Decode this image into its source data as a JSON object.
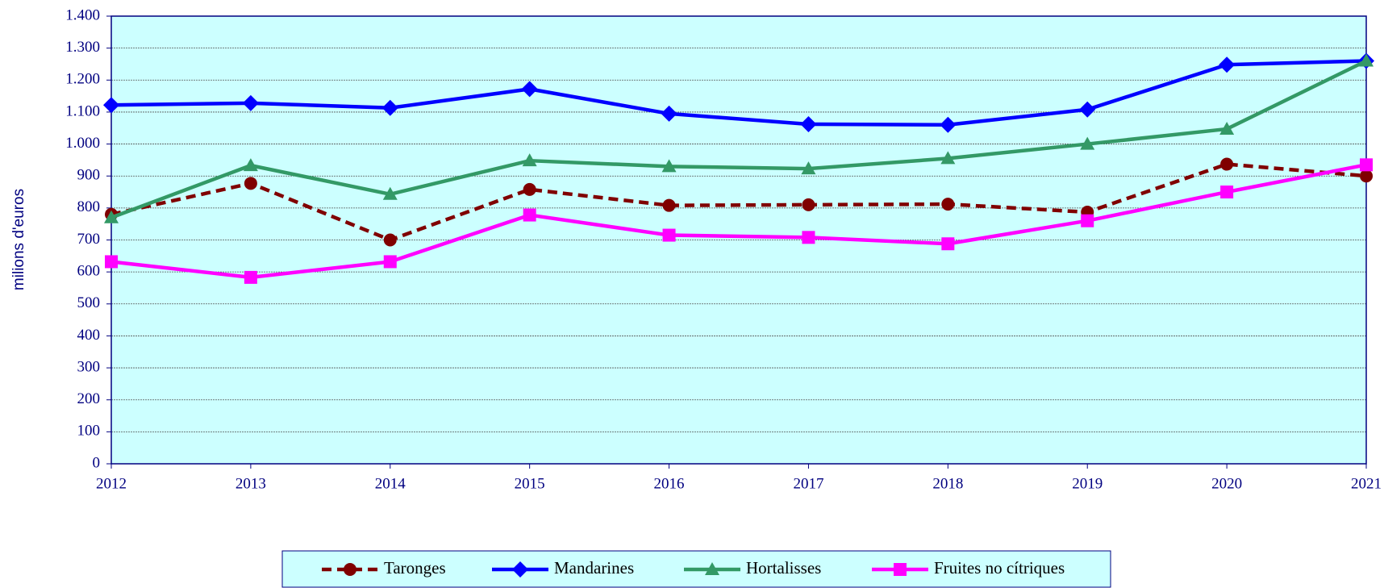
{
  "chart_data": {
    "type": "line",
    "y_label": "milions d'euros",
    "categories": [
      "2012",
      "2013",
      "2014",
      "2015",
      "2016",
      "2017",
      "2018",
      "2019",
      "2020",
      "2021"
    ],
    "series": [
      {
        "name": "Taronges",
        "color": "#800000",
        "marker": "circle",
        "dashed": true,
        "values": [
          780,
          877,
          700,
          858,
          808,
          810,
          812,
          787,
          937,
          900
        ]
      },
      {
        "name": "Mandarines",
        "color": "#0000ff",
        "marker": "diamond",
        "values": [
          1122,
          1128,
          1113,
          1172,
          1095,
          1062,
          1060,
          1108,
          1248,
          1260
        ]
      },
      {
        "name": "Hortalisses",
        "color": "#339966",
        "marker": "triangle",
        "values": [
          770,
          933,
          843,
          948,
          930,
          923,
          955,
          1000,
          1047,
          1260
        ]
      },
      {
        "name": "Fruites no cítriques",
        "color": "#ff00ff",
        "marker": "square",
        "values": [
          632,
          583,
          632,
          778,
          715,
          708,
          688,
          760,
          850,
          935
        ]
      }
    ],
    "ylim": [
      0,
      1400
    ],
    "yticks": [
      0,
      100,
      200,
      300,
      400,
      500,
      600,
      700,
      800,
      900,
      {
        "value": 1000,
        "label": "1.000"
      },
      {
        "value": 1100,
        "label": "1.100"
      },
      {
        "value": 1200,
        "label": "1.200"
      },
      {
        "value": 1300,
        "label": "1.300"
      },
      {
        "value": 1400,
        "label": "1.400"
      }
    ],
    "grid": true,
    "legend": "bottom"
  }
}
